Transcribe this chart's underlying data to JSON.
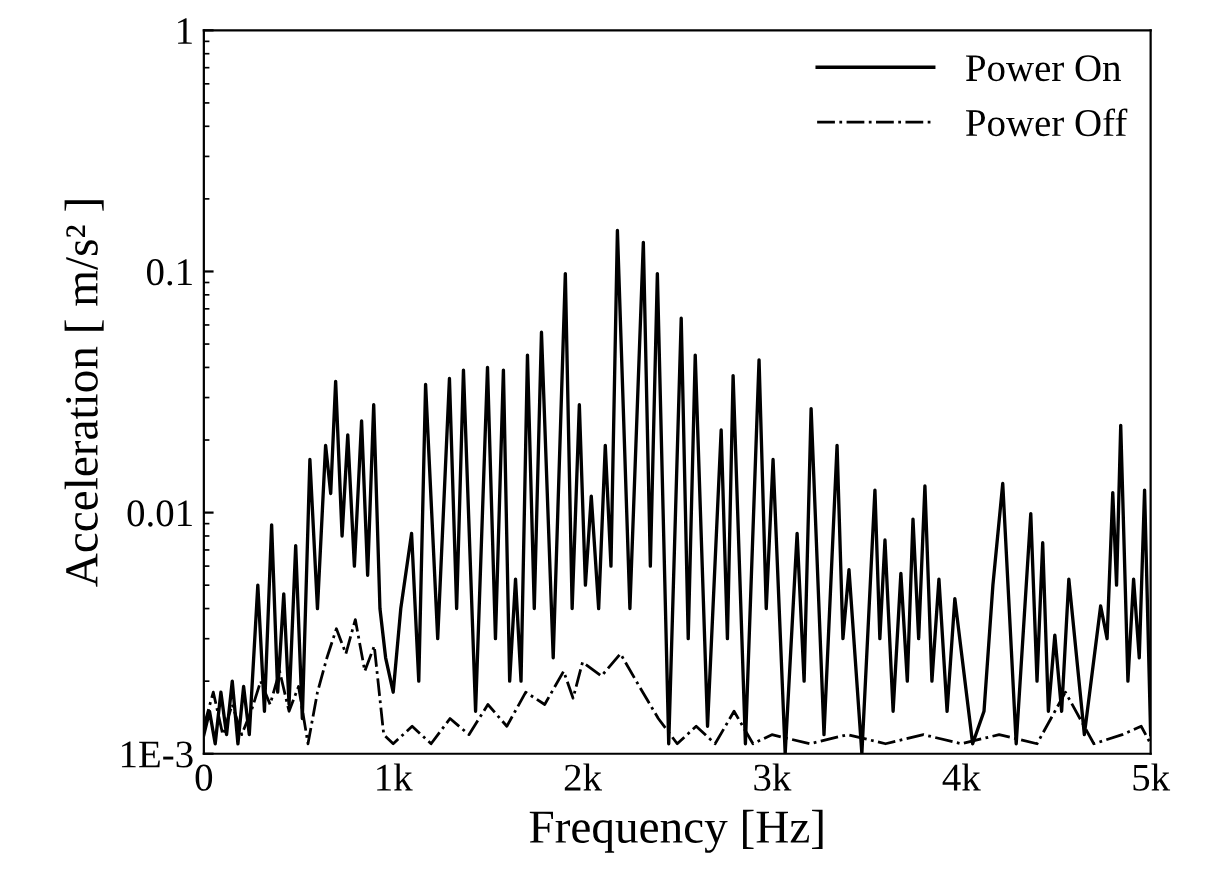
{
  "chart_data": {
    "type": "line",
    "xlabel": "Frequency [Hz]",
    "ylabel": "Acceleration [ m/s² ]",
    "log": "y",
    "grid": false,
    "legend": "top right",
    "xlim": [
      0,
      5000
    ],
    "ylim": [
      0.001,
      1
    ],
    "xticks": [
      0,
      {
        "value": 1000,
        "label": "1k"
      },
      {
        "value": 2000,
        "label": "2k"
      },
      {
        "value": 3000,
        "label": "3k"
      },
      {
        "value": 4000,
        "label": "4k"
      },
      {
        "value": 5000,
        "label": "5k"
      }
    ],
    "yticks": [
      {
        "value": 0.001,
        "label": "1E-3"
      },
      0.01,
      0.1,
      1
    ],
    "series": [
      {
        "name": "Power On",
        "color": "#000000",
        "line_style": "solid",
        "x": [
          0,
          30,
          60,
          90,
          120,
          150,
          180,
          210,
          240,
          285,
          320,
          358,
          390,
          422,
          450,
          485,
          520,
          560,
          600,
          643,
          670,
          696,
          730,
          760,
          795,
          833,
          865,
          897,
          930,
          960,
          1000,
          1040,
          1097,
          1135,
          1171,
          1235,
          1297,
          1335,
          1371,
          1435,
          1498,
          1540,
          1582,
          1615,
          1646,
          1675,
          1709,
          1745,
          1783,
          1845,
          1909,
          1945,
          1983,
          2015,
          2046,
          2085,
          2120,
          2150,
          2184,
          2250,
          2321,
          2358,
          2395,
          2455,
          2521,
          2558,
          2595,
          2660,
          2732,
          2765,
          2795,
          2860,
          2932,
          2970,
          3006,
          3070,
          3133,
          3170,
          3207,
          3275,
          3344,
          3375,
          3407,
          3475,
          3544,
          3570,
          3597,
          3640,
          3681,
          3715,
          3745,
          3775,
          3808,
          3845,
          3882,
          3925,
          3966,
          4060,
          4120,
          4167,
          4219,
          4290,
          4367,
          4400,
          4430,
          4460,
          4494,
          4530,
          4568,
          4650,
          4736,
          4770,
          4800,
          4820,
          4842,
          4880,
          4910,
          4940,
          4968,
          5000
        ],
        "values": [
          0.0012,
          0.0015,
          0.0011,
          0.0018,
          0.0012,
          0.002,
          0.0011,
          0.0019,
          0.0012,
          0.005,
          0.0015,
          0.0089,
          0.0018,
          0.0046,
          0.0016,
          0.0073,
          0.0014,
          0.0166,
          0.004,
          0.019,
          0.012,
          0.035,
          0.008,
          0.021,
          0.006,
          0.024,
          0.0055,
          0.028,
          0.004,
          0.0025,
          0.0018,
          0.004,
          0.0082,
          0.002,
          0.034,
          0.003,
          0.036,
          0.004,
          0.039,
          0.0015,
          0.04,
          0.003,
          0.039,
          0.002,
          0.0053,
          0.002,
          0.045,
          0.004,
          0.056,
          0.0025,
          0.098,
          0.004,
          0.028,
          0.005,
          0.0117,
          0.004,
          0.019,
          0.006,
          0.148,
          0.004,
          0.132,
          0.006,
          0.098,
          0.0011,
          0.064,
          0.003,
          0.045,
          0.0013,
          0.022,
          0.003,
          0.037,
          0.0011,
          0.043,
          0.004,
          0.0166,
          0.001,
          0.0082,
          0.002,
          0.027,
          0.0012,
          0.019,
          0.003,
          0.0058,
          0.001,
          0.0124,
          0.003,
          0.0077,
          0.0015,
          0.0056,
          0.002,
          0.0094,
          0.003,
          0.0129,
          0.002,
          0.0053,
          0.0015,
          0.0044,
          0.0011,
          0.0015,
          0.005,
          0.0132,
          0.0011,
          0.0099,
          0.002,
          0.0075,
          0.0015,
          0.0031,
          0.0015,
          0.0053,
          0.0012,
          0.0041,
          0.003,
          0.0121,
          0.005,
          0.023,
          0.002,
          0.0053,
          0.0025,
          0.0124,
          0.0012
        ]
      },
      {
        "name": "Power Off",
        "color": "#000000",
        "line_style": "dashdot",
        "x": [
          0,
          50,
          100,
          150,
          200,
          250,
          300,
          350,
          400,
          450,
          500,
          550,
          600,
          650,
          700,
          750,
          800,
          850,
          900,
          950,
          1000,
          1100,
          1200,
          1300,
          1400,
          1500,
          1600,
          1700,
          1800,
          1900,
          1950,
          2000,
          2100,
          2200,
          2300,
          2400,
          2500,
          2600,
          2700,
          2800,
          2900,
          3000,
          3200,
          3400,
          3600,
          3800,
          4000,
          4200,
          4400,
          4550,
          4700,
          4850,
          4950,
          5000
        ],
        "values": [
          0.0013,
          0.0018,
          0.0012,
          0.0016,
          0.0012,
          0.0015,
          0.002,
          0.0016,
          0.0022,
          0.0015,
          0.0019,
          0.0011,
          0.0018,
          0.0025,
          0.0033,
          0.0026,
          0.0036,
          0.0022,
          0.0028,
          0.0012,
          0.0011,
          0.0013,
          0.0011,
          0.0014,
          0.0012,
          0.0016,
          0.0013,
          0.0018,
          0.0016,
          0.0022,
          0.0017,
          0.0024,
          0.0021,
          0.0026,
          0.0019,
          0.0014,
          0.0011,
          0.0013,
          0.0011,
          0.0015,
          0.0011,
          0.0012,
          0.0011,
          0.0012,
          0.0011,
          0.0012,
          0.0011,
          0.0012,
          0.0011,
          0.0018,
          0.0011,
          0.0012,
          0.0013,
          0.0011
        ]
      }
    ]
  }
}
